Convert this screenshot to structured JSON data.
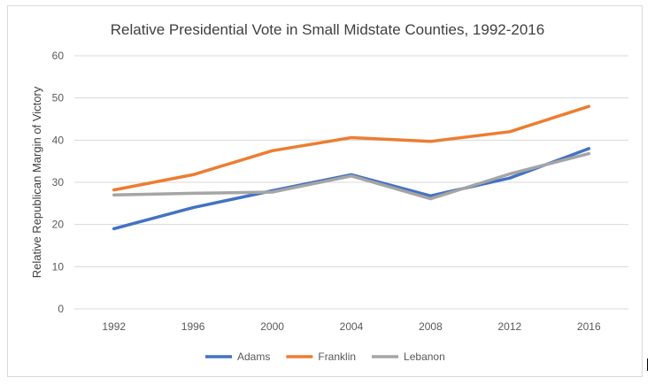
{
  "chart_data": {
    "type": "line",
    "title": "Relative Presidential Vote in Small Midstate Counties, 1992-2016",
    "xlabel": "",
    "ylabel": "Relative Republican Margin of Victory",
    "categories": [
      "1992",
      "1996",
      "2000",
      "2004",
      "2008",
      "2012",
      "2016"
    ],
    "ylim": [
      0,
      60
    ],
    "yticks": [
      0,
      10,
      20,
      30,
      40,
      50,
      60
    ],
    "grid": true,
    "legend_position": "bottom",
    "series": [
      {
        "name": "Adams",
        "color": "#4472C4",
        "values": [
          19,
          24,
          28,
          31.8,
          26.8,
          31,
          38
        ]
      },
      {
        "name": "Franklin",
        "color": "#ED7D31",
        "values": [
          28.2,
          31.8,
          37.5,
          40.6,
          39.7,
          42,
          48
        ]
      },
      {
        "name": "Lebanon",
        "color": "#A5A5A5",
        "values": [
          27,
          27.4,
          27.7,
          31.5,
          26.1,
          32,
          36.8
        ]
      }
    ]
  }
}
